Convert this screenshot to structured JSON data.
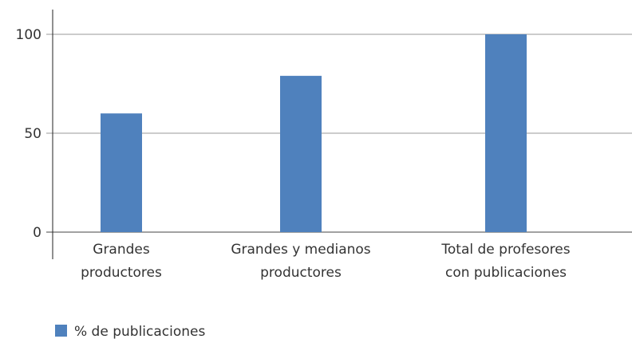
{
  "chart_data": {
    "type": "bar",
    "categories": [
      [
        "Grandes",
        "productores"
      ],
      [
        "Grandes y medianos",
        "productores"
      ],
      [
        "Total de profesores",
        "con publicaciones"
      ]
    ],
    "series": [
      {
        "name": "% de publicaciones",
        "values": [
          60,
          79,
          100
        ],
        "color": "#4f81bd"
      }
    ],
    "yticks": [
      "0",
      "50",
      "100"
    ],
    "ylim": [
      0,
      100
    ],
    "grid": true,
    "legend_position": "bottom-left"
  }
}
